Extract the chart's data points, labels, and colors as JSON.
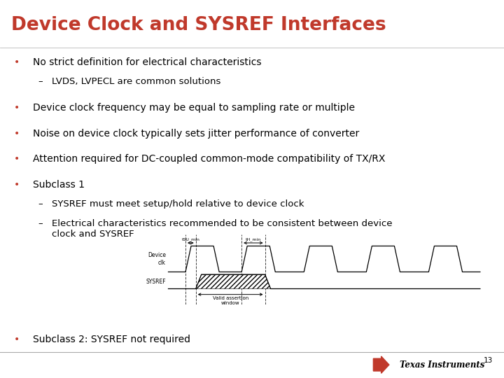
{
  "title": "Device Clock and SYSREF Interfaces",
  "title_color": "#C0392B",
  "bg_color": "#FFFFFF",
  "text_color": "#000000",
  "bullet_color": "#C0392B",
  "bullets": [
    "No strict definition for electrical characteristics",
    "Device clock frequency may be equal to sampling rate or multiple",
    "Noise on device clock typically sets jitter performance of converter",
    "Attention required for DC-coupled common-mode compatibility of TX/RX",
    "Subclass 1"
  ],
  "sub_bullet1": "LVDS, LVPECL are common solutions",
  "sub_bullet_sc1_a": "SYSREF must meet setup/hold relative to device clock",
  "sub_bullet_sc1_b": "Electrical characteristics recommended to be consistent between device\nclock and SYSREF",
  "bullet6": "Subclass 2: SYSREF not required",
  "footer_num": "13"
}
